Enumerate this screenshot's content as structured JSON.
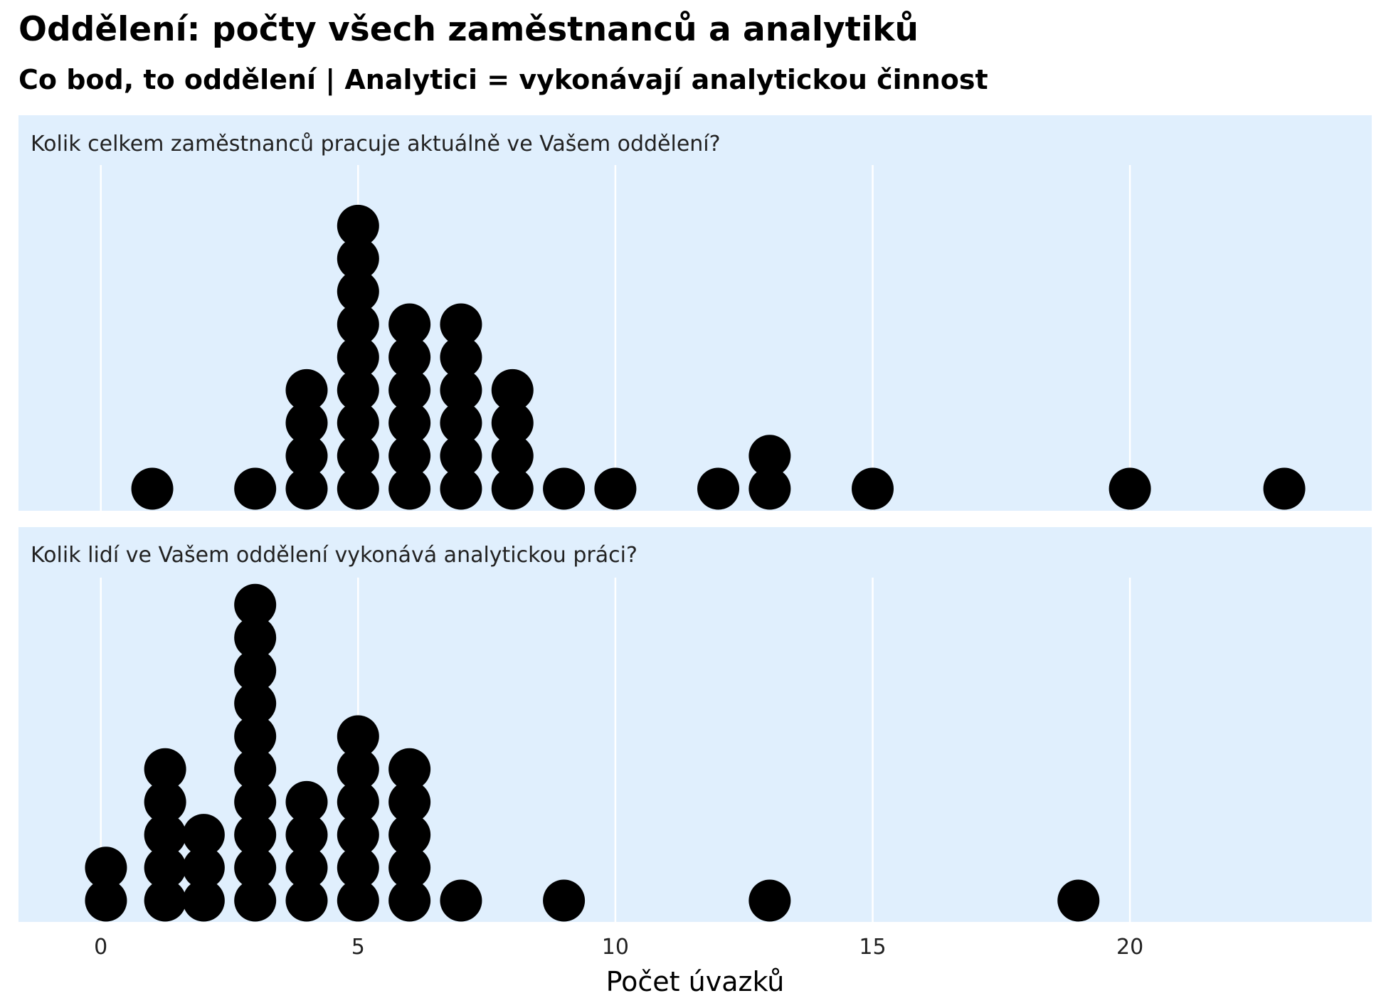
{
  "title": "Oddělení: počty všech zaměstnanců a analytiků",
  "subtitle": "Co bod, to oddělení | Analytici = vykonávají analytickou činnost",
  "chart_data": {
    "type": "dotplot",
    "xlabel": "Počet úvazků",
    "ylabel": "",
    "xlim": [
      -1.6,
      24.7
    ],
    "x_ticks": [
      0,
      5,
      10,
      15,
      20
    ],
    "grid": "vertical major lines",
    "panel_color": "#e0effd",
    "dot_color": "#000000",
    "panels": [
      {
        "label": "Kolik celkem zaměstnanců pracuje aktuálně ve Vašem oddělení?",
        "bins": [
          {
            "x": 1,
            "count": 1
          },
          {
            "x": 3,
            "count": 1
          },
          {
            "x": 4,
            "count": 4
          },
          {
            "x": 5,
            "count": 9
          },
          {
            "x": 6,
            "count": 6
          },
          {
            "x": 7,
            "count": 6
          },
          {
            "x": 8,
            "count": 4
          },
          {
            "x": 9,
            "count": 1
          },
          {
            "x": 10,
            "count": 1
          },
          {
            "x": 12,
            "count": 1
          },
          {
            "x": 13,
            "count": 2
          },
          {
            "x": 15,
            "count": 1
          },
          {
            "x": 20,
            "count": 1
          },
          {
            "x": 23,
            "count": 1
          }
        ]
      },
      {
        "label": "Kolik lidí ve Vašem oddělení vykonává analytickou práci?",
        "bins": [
          {
            "x": 0.1,
            "count": 2
          },
          {
            "x": 1.25,
            "count": 5
          },
          {
            "x": 2,
            "count": 3
          },
          {
            "x": 3,
            "count": 10
          },
          {
            "x": 4,
            "count": 4
          },
          {
            "x": 5,
            "count": 6
          },
          {
            "x": 6,
            "count": 5
          },
          {
            "x": 7,
            "count": 1
          },
          {
            "x": 9,
            "count": 1
          },
          {
            "x": 13,
            "count": 1
          },
          {
            "x": 19,
            "count": 1
          }
        ]
      }
    ]
  }
}
